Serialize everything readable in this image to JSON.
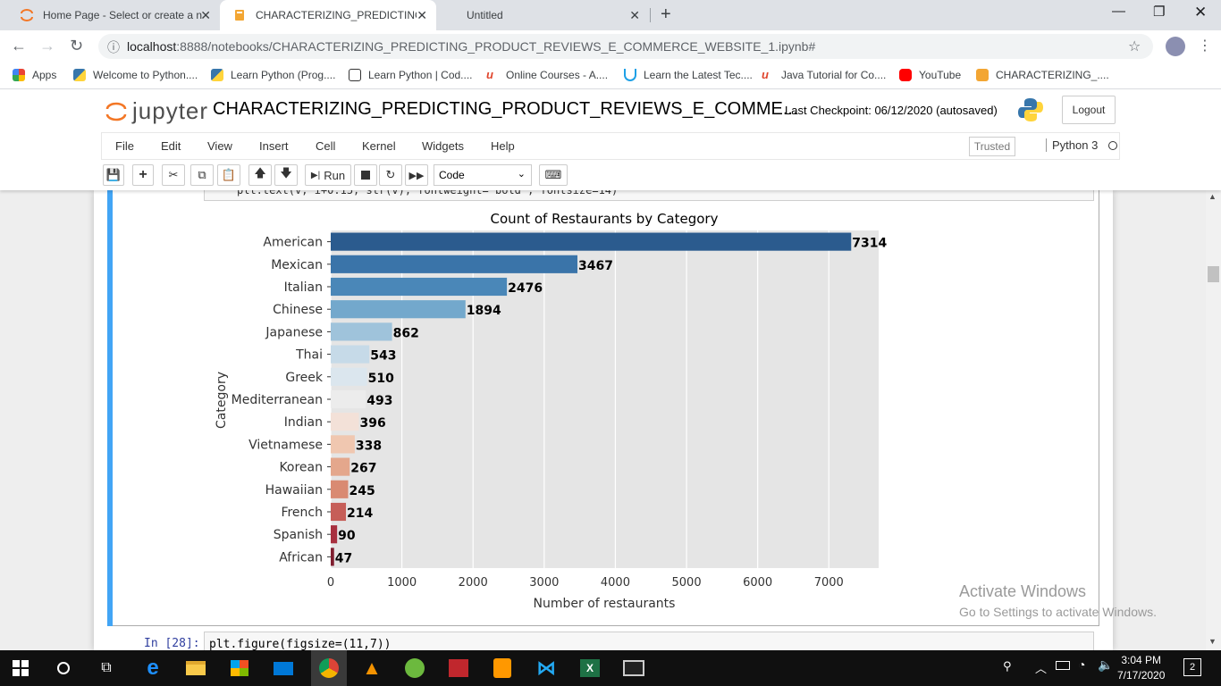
{
  "browser": {
    "tabs": [
      {
        "label": "Home Page - Select or create a n",
        "active": false
      },
      {
        "label": "CHARACTERIZING_PREDICTING_",
        "active": true
      },
      {
        "label": "Untitled",
        "active": false
      }
    ],
    "new_tab": "+",
    "url_host": "localhost",
    "url_path": ":8888/notebooks/CHARACTERIZING_PREDICTING_PRODUCT_REVIEWS_E_COMMERCE_WEBSITE_1.ipynb#",
    "bookmarks": [
      "Apps",
      "Welcome to Python....",
      "Learn Python (Prog....",
      "Learn Python | Cod....",
      "Online Courses - A....",
      "Learn the Latest Tec....",
      "Java Tutorial for Co....",
      "YouTube",
      "CHARACTERIZING_...."
    ]
  },
  "jupyter": {
    "logo": "jupyter",
    "title": "CHARACTERIZING_PREDICTING_PRODUCT_REVIEWS_E_COMME...",
    "checkpoint": "Last Checkpoint: 06/12/2020  (autosaved)",
    "logout": "Logout",
    "menus": [
      "File",
      "Edit",
      "View",
      "Insert",
      "Cell",
      "Kernel",
      "Widgets",
      "Help"
    ],
    "trusted": "Trusted",
    "kernel": "Python 3",
    "run_label": "Run",
    "cell_type": "Code",
    "code_tail": "plt.text(v, i+0.15, str(v), fontweight='bold', fontsize=14)",
    "next_prompt": "In [28]:",
    "next_code": "plt.figure(figsize=(11,7))"
  },
  "chart_data": {
    "type": "bar",
    "orientation": "horizontal",
    "title": "Count of Restaurants by Category",
    "xlabel": "Number of restaurants",
    "ylabel": "Category",
    "categories": [
      "American",
      "Mexican",
      "Italian",
      "Chinese",
      "Japanese",
      "Thai",
      "Greek",
      "Mediterranean",
      "Indian",
      "Vietnamese",
      "Korean",
      "Hawaiian",
      "French",
      "Spanish",
      "African"
    ],
    "values": [
      7314,
      3467,
      2476,
      1894,
      862,
      543,
      510,
      493,
      396,
      338,
      267,
      245,
      214,
      90,
      47
    ],
    "value_labels": [
      "7314",
      "3467",
      "2476",
      "1894",
      "862",
      "543",
      "510",
      "493",
      "396",
      "338",
      "267",
      "245",
      "214",
      "90",
      "47"
    ],
    "colors": [
      "#2b5b8e",
      "#3a74a9",
      "#4a87b8",
      "#73a8cc",
      "#9fc3db",
      "#c6dae8",
      "#dbe6ee",
      "#ececec",
      "#f3e1d8",
      "#f0c7b0",
      "#e4a78c",
      "#d98a72",
      "#c65e58",
      "#a8303f",
      "#7f1e2f"
    ],
    "xlim": [
      0,
      7700
    ],
    "xticks": [
      0,
      1000,
      2000,
      3000,
      4000,
      5000,
      6000,
      7000
    ],
    "xtick_labels": [
      "0",
      "1000",
      "2000",
      "3000",
      "4000",
      "5000",
      "6000",
      "7000"
    ],
    "grid": true,
    "background": "#e5e5e5"
  },
  "watermark": {
    "line1": "Activate Windows",
    "line2": "Go to Settings to activate Windows."
  },
  "taskbar": {
    "time": "3:04 PM",
    "date": "7/17/2020",
    "notifications": "2"
  }
}
